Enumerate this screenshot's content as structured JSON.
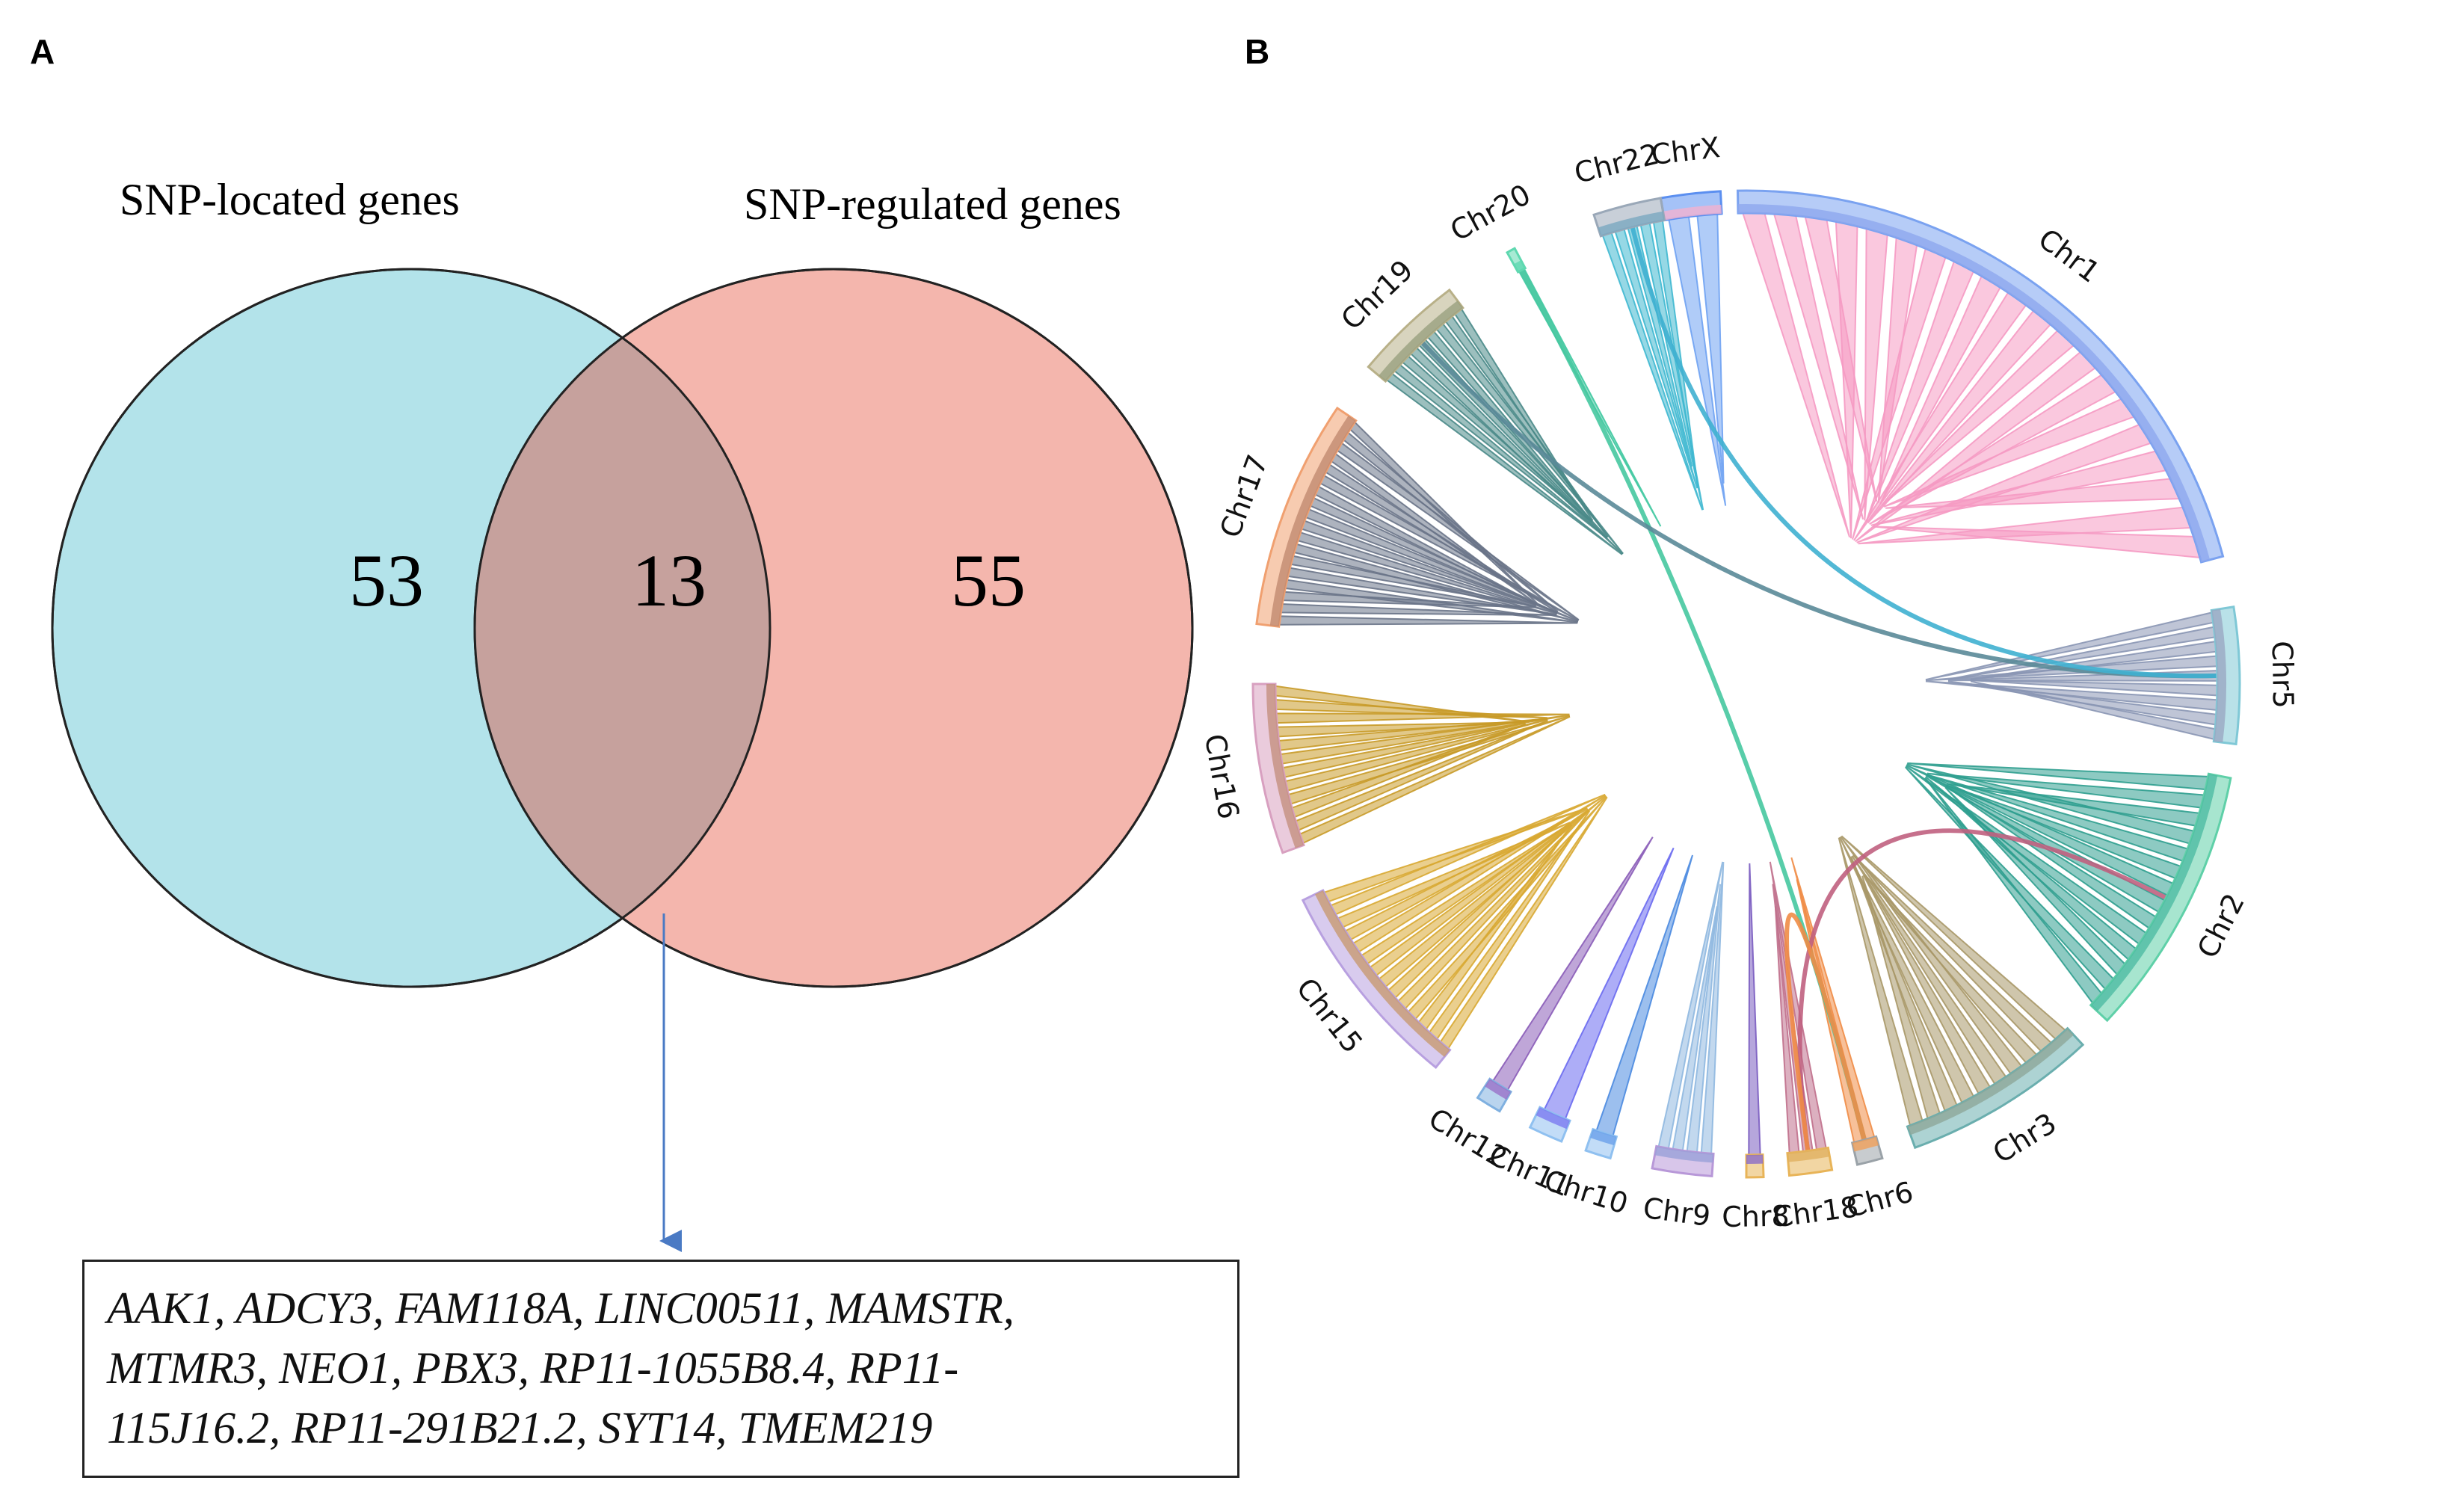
{
  "panel_a": {
    "label": "A",
    "venn": {
      "left_set": {
        "title": "SNP-located genes",
        "unique_count": "53",
        "color": "#b3e3ea"
      },
      "right_set": {
        "title": "SNP-regulated genes",
        "unique_count": "55",
        "color": "#f4b6ad"
      },
      "overlap": {
        "count": "13",
        "color": "#c6a19d"
      }
    },
    "overlap_genes": {
      "line1": "AAK1, ADCY3, FAM118A, LINC00511, MAMSTR,",
      "line2": "MTMR3, NEO1, PBX3, RP11-1055B8.4, RP11-",
      "line3": "115J16.2, RP11-291B21.2, SYT14, TMEM219"
    },
    "arrow_color": "#4a7ac4"
  },
  "panel_b": {
    "label": "B",
    "chromosomes": [
      {
        "name": "ChrX",
        "color": "#5b8ff0",
        "ribbon": "#6fa2f2",
        "band": "#f3b2d0",
        "links": 2
      },
      {
        "name": "Chr1",
        "color": "#7aa2f0",
        "ribbon": "#f59ac3",
        "band": "#8fa8ee",
        "links": 20
      },
      {
        "name": "Chr5",
        "color": "#7fc8d6",
        "ribbon": "#8a96b4",
        "band": "#9aa7c2",
        "links": 9
      },
      {
        "name": "Chr2",
        "color": "#5fd0a8",
        "ribbon": "#2f9f8f",
        "band": "#4fbca2",
        "links": 14
      },
      {
        "name": "Chr3",
        "color": "#6aaeae",
        "ribbon": "#a89868",
        "band": "#8da89a",
        "links": 10
      },
      {
        "name": "Chr6",
        "color": "#9aa2a8",
        "ribbon": "#f08c46",
        "band": "#f0a05a",
        "links": 2
      },
      {
        "name": "Chr18",
        "color": "#e8b458",
        "ribbon": "#c0708c",
        "band": "#e0b060",
        "links": 3
      },
      {
        "name": "Chr8",
        "color": "#e8b458",
        "ribbon": "#7a5cc0",
        "band": "#8a6cc8",
        "links": 1
      },
      {
        "name": "Chr9",
        "color": "#b898d8",
        "ribbon": "#8fb8e0",
        "band": "#9aa0d8",
        "links": 4
      },
      {
        "name": "Chr10",
        "color": "#8fc0f0",
        "ribbon": "#4a8ae0",
        "band": "#6aa0ea",
        "links": 1
      },
      {
        "name": "Chr11",
        "color": "#8fc0f0",
        "ribbon": "#6a6af0",
        "band": "#7a7af0",
        "links": 1
      },
      {
        "name": "Chr12",
        "color": "#7fb0e0",
        "ribbon": "#8a5cb8",
        "band": "#9a70c8",
        "links": 1
      },
      {
        "name": "Chr15",
        "color": "#b8a0e0",
        "ribbon": "#d8a832",
        "band": "#c89a72",
        "links": 14
      },
      {
        "name": "Chr16",
        "color": "#d8a0c0",
        "ribbon": "#c89a28",
        "band": "#c49080",
        "links": 12
      },
      {
        "name": "Chr17",
        "color": "#f0a070",
        "ribbon": "#6a7488",
        "band": "#c08a70",
        "links": 18
      },
      {
        "name": "Chr19",
        "color": "#b8b088",
        "ribbon": "#4a8a88",
        "band": "#9aa080",
        "links": 9
      },
      {
        "name": "Chr20",
        "color": "#5fd8b0",
        "ribbon": "#3fc8a0",
        "band": "#5fd8b0",
        "links": 1
      },
      {
        "name": "Chr22",
        "color": "#9aa8b8",
        "ribbon": "#3fb8d0",
        "band": "#7aa8c0",
        "links": 5
      }
    ],
    "cross_links": [
      {
        "from": "Chr20",
        "to": "Chr6",
        "color": "#46c8a0"
      },
      {
        "from": "Chr19",
        "to": "Chr5",
        "color": "#5a8a98"
      },
      {
        "from": "Chr22",
        "to": "Chr5",
        "color": "#3fb0d0"
      },
      {
        "from": "Chr18",
        "to": "Chr2",
        "color": "#c06080"
      },
      {
        "from": "Chr18",
        "to": "Chr6",
        "color": "#f08c46"
      }
    ]
  }
}
